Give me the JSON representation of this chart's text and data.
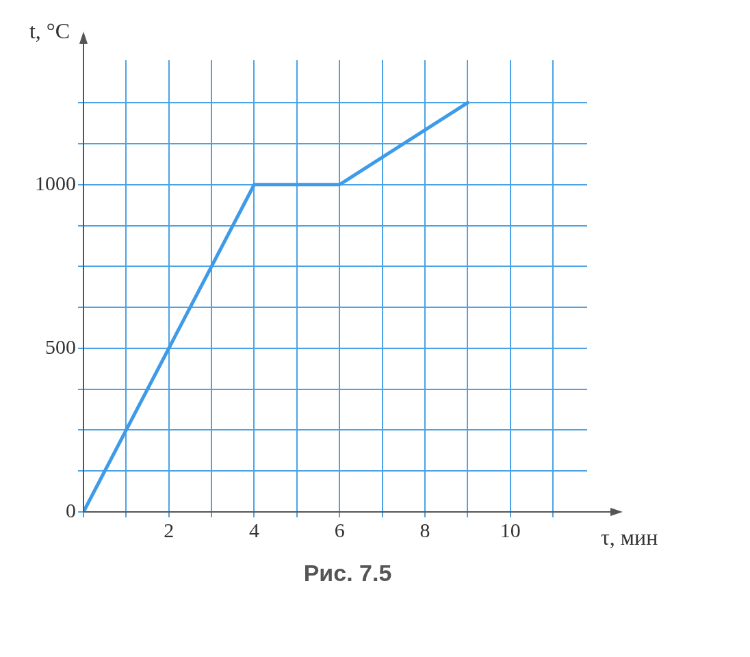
{
  "chart_data": {
    "type": "line",
    "xlabel": "τ, мин",
    "ylabel": "t, °C",
    "x": [
      0,
      4,
      6,
      9
    ],
    "series": [
      {
        "color": "#3d9be9",
        "values": [
          0,
          1000,
          1000,
          1250
        ]
      }
    ],
    "xlim": [
      0,
      11.8
    ],
    "ylim": [
      0,
      1380
    ],
    "xticks": [
      {
        "value": 0,
        "label": null
      },
      {
        "value": 1,
        "label": null
      },
      2,
      {
        "value": 3,
        "label": null
      },
      4,
      {
        "value": 5,
        "label": null
      },
      6,
      {
        "value": 7,
        "label": null
      },
      8,
      {
        "value": 9,
        "label": null
      },
      10,
      {
        "value": 11,
        "label": null
      }
    ],
    "yticks": [
      0,
      {
        "value": 125,
        "label": null
      },
      {
        "value": 250,
        "label": null
      },
      {
        "value": 375,
        "label": null
      },
      500,
      {
        "value": 625,
        "label": null
      },
      {
        "value": 750,
        "label": null
      },
      {
        "value": 875,
        "label": null
      },
      1000,
      {
        "value": 1125,
        "label": null
      },
      {
        "value": 1250,
        "label": null
      }
    ],
    "grid": true,
    "legend": false,
    "marker": "none",
    "line_style": "solid",
    "annotations": [
      "Рис. 7.5"
    ]
  }
}
